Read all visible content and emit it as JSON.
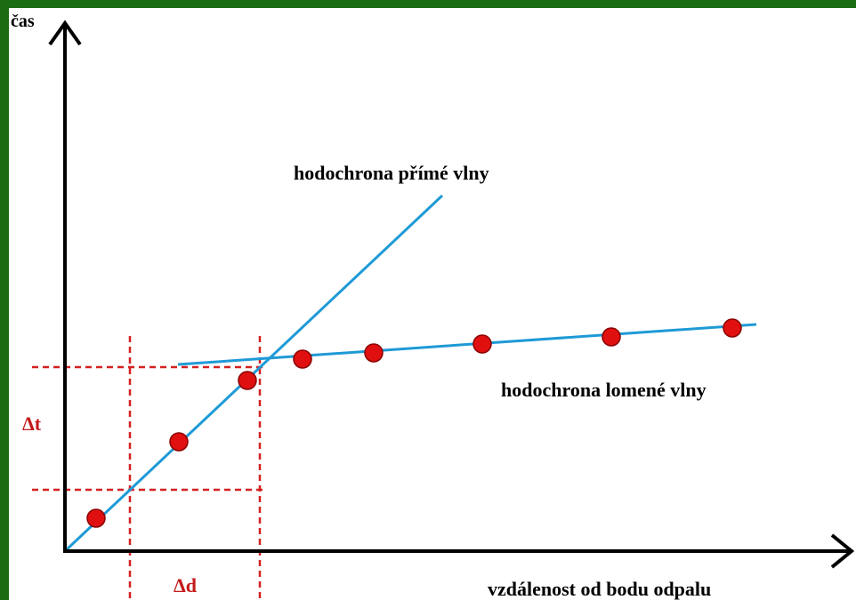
{
  "axes": {
    "y_label": "čas",
    "x_label": "vzdálenost od bodu odpalu"
  },
  "lines": [
    {
      "label": "hodochrona přímé vlny"
    },
    {
      "label": "hodochrona lomené vlny"
    }
  ],
  "annotations": {
    "delta_t": "Δt",
    "delta_d": "Δd"
  }
}
